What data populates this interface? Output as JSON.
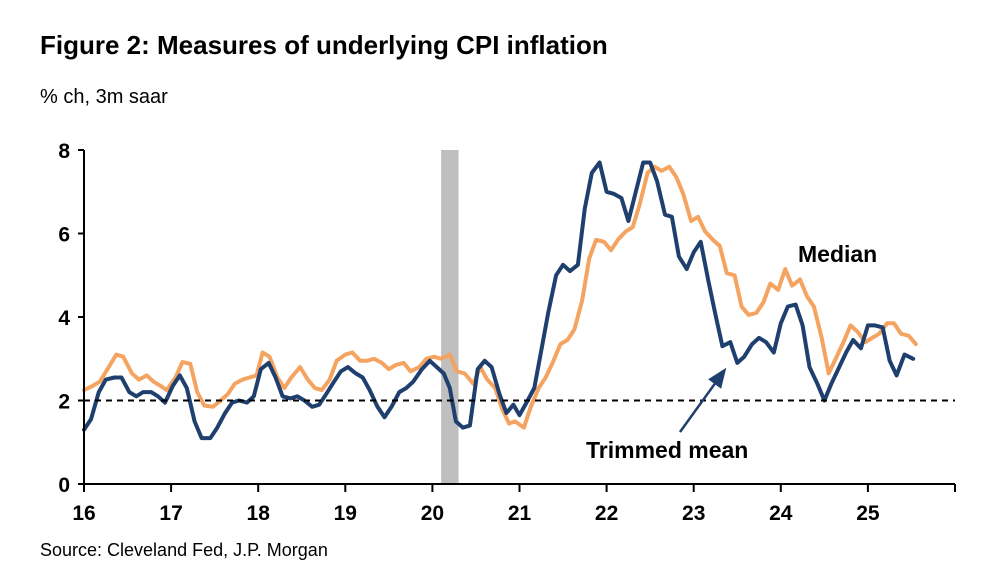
{
  "chart_data": {
    "type": "line",
    "title": "Figure 2: Measures of underlying CPI inflation",
    "subtitle": "% ch, 3m saar",
    "source": "Source: Cleveland Fed, J.P. Morgan",
    "x_ticks": [
      "16",
      "17",
      "18",
      "19",
      "20",
      "21",
      "22",
      "23",
      "24",
      "25"
    ],
    "y_ticks": [
      "0",
      "2",
      "4",
      "6",
      "8"
    ],
    "ylim": [
      0,
      8
    ],
    "xlim": [
      2016.0,
      2026.0
    ],
    "reference_line": {
      "y": 2,
      "style": "dashed",
      "color": "#000000"
    },
    "shaded_region": {
      "from": 2020.1,
      "to": 2020.3,
      "color": "#bfbfbf"
    },
    "annotations": [
      {
        "text": "Median",
        "series": "Median"
      },
      {
        "text": "Trimmed mean",
        "series": "Trimmed mean",
        "arrow": true
      }
    ],
    "grid": false,
    "legend": "none",
    "series": [
      {
        "name": "Median",
        "color": "#f4a460",
        "data": [
          [
            2016.0,
            2.25
          ],
          [
            2016.1,
            2.35
          ],
          [
            2016.18,
            2.45
          ],
          [
            2016.27,
            2.75
          ],
          [
            2016.37,
            3.1
          ],
          [
            2016.45,
            3.05
          ],
          [
            2016.55,
            2.65
          ],
          [
            2016.63,
            2.5
          ],
          [
            2016.72,
            2.6
          ],
          [
            2016.8,
            2.45
          ],
          [
            2016.88,
            2.35
          ],
          [
            2016.95,
            2.25
          ],
          [
            2017.05,
            2.55
          ],
          [
            2017.13,
            2.92
          ],
          [
            2017.22,
            2.88
          ],
          [
            2017.3,
            2.2
          ],
          [
            2017.38,
            1.88
          ],
          [
            2017.48,
            1.85
          ],
          [
            2017.57,
            2.0
          ],
          [
            2017.65,
            2.15
          ],
          [
            2017.73,
            2.4
          ],
          [
            2017.82,
            2.5
          ],
          [
            2017.9,
            2.55
          ],
          [
            2017.98,
            2.6
          ],
          [
            2018.05,
            3.15
          ],
          [
            2018.13,
            3.05
          ],
          [
            2018.22,
            2.55
          ],
          [
            2018.3,
            2.3
          ],
          [
            2018.38,
            2.55
          ],
          [
            2018.48,
            2.8
          ],
          [
            2018.57,
            2.5
          ],
          [
            2018.65,
            2.3
          ],
          [
            2018.73,
            2.25
          ],
          [
            2018.82,
            2.5
          ],
          [
            2018.9,
            2.95
          ],
          [
            2019.0,
            3.1
          ],
          [
            2019.08,
            3.15
          ],
          [
            2019.17,
            2.95
          ],
          [
            2019.25,
            2.95
          ],
          [
            2019.33,
            3.0
          ],
          [
            2019.42,
            2.9
          ],
          [
            2019.5,
            2.75
          ],
          [
            2019.58,
            2.85
          ],
          [
            2019.67,
            2.9
          ],
          [
            2019.75,
            2.7
          ],
          [
            2019.85,
            2.8
          ],
          [
            2019.93,
            3.0
          ],
          [
            2020.02,
            3.05
          ],
          [
            2020.1,
            3.0
          ],
          [
            2020.2,
            3.1
          ],
          [
            2020.28,
            2.7
          ],
          [
            2020.37,
            2.65
          ],
          [
            2020.47,
            2.4
          ],
          [
            2020.55,
            2.8
          ],
          [
            2020.63,
            2.5
          ],
          [
            2020.72,
            2.3
          ],
          [
            2020.8,
            1.8
          ],
          [
            2020.88,
            1.45
          ],
          [
            2020.95,
            1.5
          ],
          [
            2021.05,
            1.35
          ],
          [
            2021.13,
            1.85
          ],
          [
            2021.22,
            2.3
          ],
          [
            2021.3,
            2.55
          ],
          [
            2021.38,
            2.9
          ],
          [
            2021.47,
            3.35
          ],
          [
            2021.55,
            3.45
          ],
          [
            2021.63,
            3.7
          ],
          [
            2021.72,
            4.4
          ],
          [
            2021.8,
            5.4
          ],
          [
            2021.88,
            5.85
          ],
          [
            2021.97,
            5.8
          ],
          [
            2022.05,
            5.6
          ],
          [
            2022.13,
            5.85
          ],
          [
            2022.22,
            6.05
          ],
          [
            2022.3,
            6.15
          ],
          [
            2022.38,
            6.7
          ],
          [
            2022.47,
            7.45
          ],
          [
            2022.55,
            7.6
          ],
          [
            2022.63,
            7.5
          ],
          [
            2022.72,
            7.6
          ],
          [
            2022.8,
            7.35
          ],
          [
            2022.88,
            6.95
          ],
          [
            2022.97,
            6.3
          ],
          [
            2023.05,
            6.4
          ],
          [
            2023.13,
            6.05
          ],
          [
            2023.22,
            5.85
          ],
          [
            2023.3,
            5.7
          ],
          [
            2023.38,
            5.05
          ],
          [
            2023.47,
            5.0
          ],
          [
            2023.55,
            4.25
          ],
          [
            2023.63,
            4.05
          ],
          [
            2023.72,
            4.1
          ],
          [
            2023.8,
            4.35
          ],
          [
            2023.88,
            4.8
          ],
          [
            2023.97,
            4.65
          ],
          [
            2024.05,
            5.15
          ],
          [
            2024.13,
            4.75
          ],
          [
            2024.22,
            4.9
          ],
          [
            2024.3,
            4.5
          ],
          [
            2024.38,
            4.25
          ],
          [
            2024.47,
            3.5
          ],
          [
            2024.55,
            2.65
          ],
          [
            2024.63,
            3.0
          ],
          [
            2024.72,
            3.4
          ],
          [
            2024.8,
            3.8
          ],
          [
            2024.88,
            3.65
          ],
          [
            2024.97,
            3.4
          ],
          [
            2025.05,
            3.5
          ],
          [
            2025.13,
            3.6
          ],
          [
            2025.22,
            3.85
          ],
          [
            2025.3,
            3.85
          ],
          [
            2025.38,
            3.6
          ],
          [
            2025.47,
            3.55
          ],
          [
            2025.55,
            3.35
          ]
        ]
      },
      {
        "name": "Trimmed mean",
        "color": "#1f3f6e",
        "data": [
          [
            2016.0,
            1.3
          ],
          [
            2016.08,
            1.55
          ],
          [
            2016.17,
            2.2
          ],
          [
            2016.25,
            2.5
          ],
          [
            2016.35,
            2.55
          ],
          [
            2016.43,
            2.55
          ],
          [
            2016.52,
            2.2
          ],
          [
            2016.6,
            2.1
          ],
          [
            2016.68,
            2.2
          ],
          [
            2016.77,
            2.2
          ],
          [
            2016.85,
            2.1
          ],
          [
            2016.93,
            1.95
          ],
          [
            2017.02,
            2.35
          ],
          [
            2017.1,
            2.6
          ],
          [
            2017.18,
            2.3
          ],
          [
            2017.27,
            1.5
          ],
          [
            2017.35,
            1.1
          ],
          [
            2017.45,
            1.1
          ],
          [
            2017.53,
            1.35
          ],
          [
            2017.62,
            1.7
          ],
          [
            2017.7,
            1.95
          ],
          [
            2017.78,
            2.0
          ],
          [
            2017.87,
            1.95
          ],
          [
            2017.95,
            2.1
          ],
          [
            2018.03,
            2.75
          ],
          [
            2018.12,
            2.9
          ],
          [
            2018.2,
            2.55
          ],
          [
            2018.28,
            2.1
          ],
          [
            2018.37,
            2.05
          ],
          [
            2018.45,
            2.1
          ],
          [
            2018.53,
            2.0
          ],
          [
            2018.62,
            1.85
          ],
          [
            2018.7,
            1.9
          ],
          [
            2018.78,
            2.15
          ],
          [
            2018.87,
            2.45
          ],
          [
            2018.95,
            2.7
          ],
          [
            2019.03,
            2.8
          ],
          [
            2019.12,
            2.65
          ],
          [
            2019.2,
            2.55
          ],
          [
            2019.28,
            2.25
          ],
          [
            2019.37,
            1.85
          ],
          [
            2019.45,
            1.6
          ],
          [
            2019.53,
            1.85
          ],
          [
            2019.62,
            2.2
          ],
          [
            2019.7,
            2.3
          ],
          [
            2019.78,
            2.45
          ],
          [
            2019.88,
            2.75
          ],
          [
            2019.97,
            2.95
          ],
          [
            2020.05,
            2.8
          ],
          [
            2020.13,
            2.65
          ],
          [
            2020.2,
            2.3
          ],
          [
            2020.27,
            1.5
          ],
          [
            2020.35,
            1.35
          ],
          [
            2020.43,
            1.4
          ],
          [
            2020.52,
            2.75
          ],
          [
            2020.6,
            2.95
          ],
          [
            2020.68,
            2.8
          ],
          [
            2020.77,
            2.15
          ],
          [
            2020.85,
            1.7
          ],
          [
            2020.93,
            1.9
          ],
          [
            2021.0,
            1.65
          ],
          [
            2021.08,
            1.95
          ],
          [
            2021.17,
            2.3
          ],
          [
            2021.25,
            3.2
          ],
          [
            2021.33,
            4.1
          ],
          [
            2021.42,
            5.0
          ],
          [
            2021.5,
            5.25
          ],
          [
            2021.58,
            5.1
          ],
          [
            2021.67,
            5.25
          ],
          [
            2021.75,
            6.6
          ],
          [
            2021.83,
            7.45
          ],
          [
            2021.92,
            7.7
          ],
          [
            2022.0,
            7.0
          ],
          [
            2022.08,
            6.95
          ],
          [
            2022.17,
            6.85
          ],
          [
            2022.25,
            6.3
          ],
          [
            2022.33,
            6.95
          ],
          [
            2022.42,
            7.7
          ],
          [
            2022.5,
            7.7
          ],
          [
            2022.58,
            7.25
          ],
          [
            2022.67,
            6.45
          ],
          [
            2022.75,
            6.4
          ],
          [
            2022.83,
            5.45
          ],
          [
            2022.92,
            5.15
          ],
          [
            2023.0,
            5.55
          ],
          [
            2023.08,
            5.8
          ],
          [
            2023.17,
            4.85
          ],
          [
            2023.25,
            4.05
          ],
          [
            2023.33,
            3.3
          ],
          [
            2023.42,
            3.4
          ],
          [
            2023.5,
            2.9
          ],
          [
            2023.58,
            3.05
          ],
          [
            2023.67,
            3.35
          ],
          [
            2023.75,
            3.5
          ],
          [
            2023.83,
            3.4
          ],
          [
            2023.92,
            3.15
          ],
          [
            2024.0,
            3.85
          ],
          [
            2024.08,
            4.25
          ],
          [
            2024.17,
            4.3
          ],
          [
            2024.25,
            3.8
          ],
          [
            2024.33,
            2.8
          ],
          [
            2024.42,
            2.4
          ],
          [
            2024.5,
            2.0
          ],
          [
            2024.58,
            2.4
          ],
          [
            2024.67,
            2.8
          ],
          [
            2024.75,
            3.15
          ],
          [
            2024.83,
            3.45
          ],
          [
            2024.92,
            3.25
          ],
          [
            2025.0,
            3.8
          ],
          [
            2025.08,
            3.8
          ],
          [
            2025.17,
            3.75
          ],
          [
            2025.25,
            2.95
          ],
          [
            2025.33,
            2.6
          ],
          [
            2025.42,
            3.1
          ],
          [
            2025.52,
            3.0
          ]
        ]
      }
    ]
  }
}
